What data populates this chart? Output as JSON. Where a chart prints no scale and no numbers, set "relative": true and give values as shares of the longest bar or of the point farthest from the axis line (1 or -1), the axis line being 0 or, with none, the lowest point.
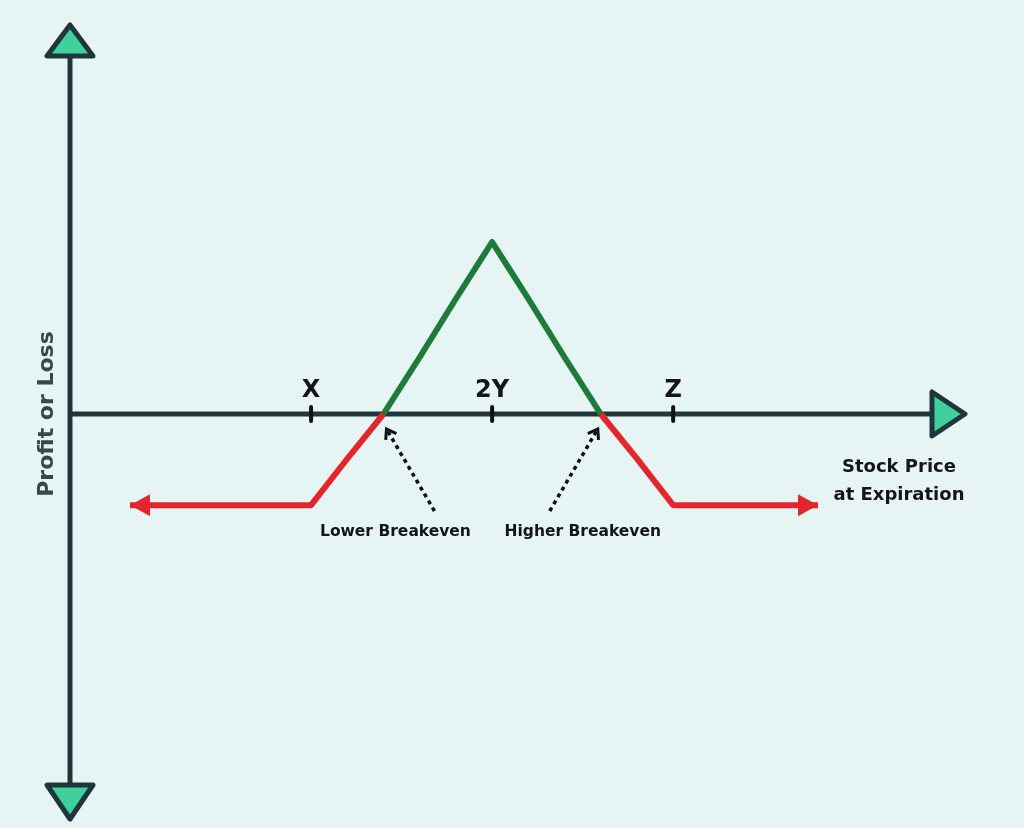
{
  "chart_data": {
    "type": "line",
    "relative": true,
    "xlabel": "Stock Price at Expiration",
    "ylabel": "Profit or Loss",
    "categories": [
      null,
      null,
      null,
      null,
      null,
      "X",
      null,
      null,
      null,
      null,
      "2Y",
      null,
      null,
      null,
      null,
      "Z",
      null,
      null,
      null,
      null
    ],
    "series": [
      {
        "color": "#e3262b",
        "values": [
          -0.53,
          -0.53,
          -0.53,
          -0.53,
          -0.53,
          -0.53,
          -0.26,
          0,
          null,
          null,
          null,
          null,
          null,
          null,
          null,
          null,
          null,
          null,
          null,
          null
        ]
      },
      {
        "color": "#1e7b3c",
        "values": [
          null,
          null,
          null,
          null,
          null,
          null,
          null,
          0,
          0.33,
          0.67,
          1,
          0.67,
          0.33,
          0,
          null,
          null,
          null,
          null,
          null,
          null
        ]
      },
      {
        "color": "#e3262b",
        "values": [
          null,
          null,
          null,
          null,
          null,
          null,
          null,
          null,
          null,
          null,
          null,
          null,
          null,
          0,
          -0.26,
          -0.53,
          -0.53,
          -0.53,
          -0.53,
          -0.53
        ]
      }
    ],
    "annotations": [
      "Lower Breakeven",
      "Higher Breakeven"
    ]
  }
}
